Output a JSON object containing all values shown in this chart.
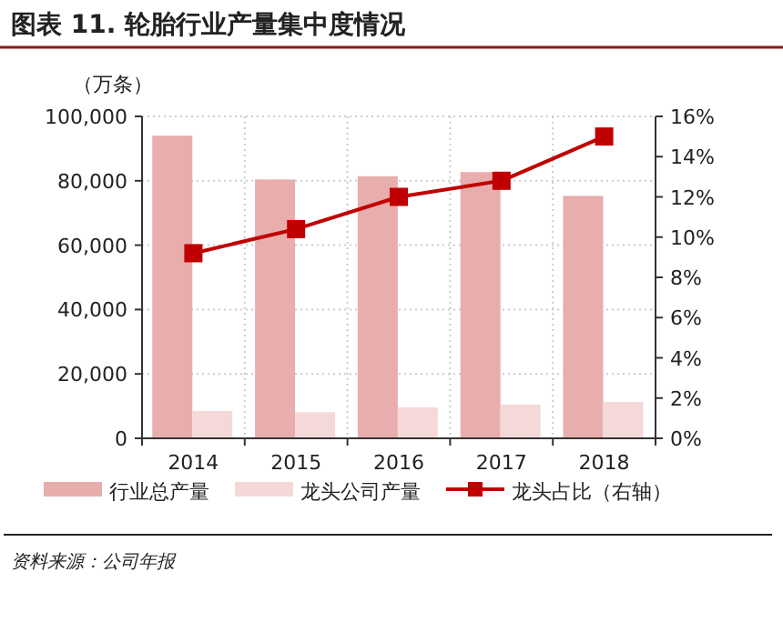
{
  "chart_data": {
    "type": "bar",
    "title": "图表 11. 轮胎行业产量集中度情况",
    "ylabel": "（万条）",
    "categories": [
      "2014",
      "2015",
      "2016",
      "2017",
      "2018"
    ],
    "series": [
      {
        "name": "行业总产量",
        "color": "#e8adad",
        "values": [
          94000,
          80400,
          81400,
          82700,
          75300
        ]
      },
      {
        "name": "龙头公司产量",
        "color": "#f5d9d9",
        "values": [
          8500,
          8100,
          9600,
          10500,
          11300
        ]
      },
      {
        "name": "龙头占比（右轴）",
        "type": "line",
        "axis": "y2",
        "color": "#c00000",
        "values": [
          9.2,
          10.4,
          12.0,
          12.8,
          15.0
        ]
      }
    ],
    "ylim": [
      0,
      100000
    ],
    "yticks": [
      {
        "value": 0,
        "label": "0"
      },
      {
        "value": 20000,
        "label": "20,000"
      },
      {
        "value": 40000,
        "label": "40,000"
      },
      {
        "value": 60000,
        "label": "60,000"
      },
      {
        "value": 80000,
        "label": "80,000"
      },
      {
        "value": 100000,
        "label": "100,000"
      }
    ],
    "y2lim": [
      0,
      16
    ],
    "y2ticks": [
      {
        "value": 0,
        "label": "0%"
      },
      {
        "value": 2,
        "label": "2%"
      },
      {
        "value": 4,
        "label": "4%"
      },
      {
        "value": 6,
        "label": "6%"
      },
      {
        "value": 8,
        "label": "8%"
      },
      {
        "value": 10,
        "label": "10%"
      },
      {
        "value": 12,
        "label": "12%"
      },
      {
        "value": 14,
        "label": "14%"
      },
      {
        "value": 16,
        "label": "16%"
      }
    ],
    "grid": true,
    "legend": "bottom",
    "marker": "square",
    "annotations": [
      "资料来源：公司年报"
    ]
  }
}
